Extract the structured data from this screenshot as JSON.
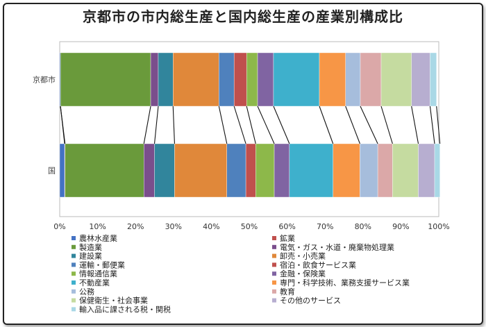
{
  "chart_data": {
    "type": "bar",
    "orientation": "horizontal",
    "stacked": "percent",
    "title": "京都市の市内総生産と国内総生産の産業別構成比",
    "categories": [
      "京都市",
      "国"
    ],
    "x_ticks": [
      "0%",
      "10%",
      "20%",
      "30%",
      "40%",
      "50%",
      "60%",
      "70%",
      "80%",
      "90%",
      "100%"
    ],
    "xlim": [
      0,
      100
    ],
    "legend_position": "bottom",
    "series": [
      {
        "name": "農林水産業",
        "color": "#4472c4",
        "values": [
          0.2,
          1.3
        ]
      },
      {
        "name": "鉱業",
        "color": "#c0504d",
        "values": [
          0.0,
          0.1
        ]
      },
      {
        "name": "製造業",
        "color": "#6a9a3b",
        "values": [
          23.8,
          20.8
        ]
      },
      {
        "name": "電気・ガス・水道・廃棄物処理業",
        "color": "#7a4e8c",
        "values": [
          2.0,
          2.8
        ]
      },
      {
        "name": "建設業",
        "color": "#31859c",
        "values": [
          3.9,
          5.3
        ]
      },
      {
        "name": "卸売・小売業",
        "color": "#e0883a",
        "values": [
          12.1,
          13.8
        ]
      },
      {
        "name": "運輸・郵便業",
        "color": "#4f81bd",
        "values": [
          4.0,
          5.0
        ]
      },
      {
        "name": "宿泊・飲食サービス業",
        "color": "#c0504d",
        "values": [
          3.3,
          2.6
        ]
      },
      {
        "name": "情報通信業",
        "color": "#8db84a",
        "values": [
          2.9,
          4.9
        ]
      },
      {
        "name": "金融・保険業",
        "color": "#8064a2",
        "values": [
          4.2,
          4.0
        ]
      },
      {
        "name": "不動産業",
        "color": "#3eb0cc",
        "values": [
          12.1,
          11.5
        ]
      },
      {
        "name": "専門・科学技術、業務支援サービス業",
        "color": "#f79646",
        "values": [
          6.9,
          7.1
        ]
      },
      {
        "name": "公務",
        "color": "#a6bddc",
        "values": [
          3.9,
          4.7
        ]
      },
      {
        "name": "教育",
        "color": "#dba8a8",
        "values": [
          5.5,
          3.9
        ]
      },
      {
        "name": "保健衛生・社会事業",
        "color": "#c5dba0",
        "values": [
          8.0,
          6.8
        ]
      },
      {
        "name": "その他のサービス",
        "color": "#b7aed0",
        "values": [
          4.9,
          4.3
        ]
      },
      {
        "name": "輸入品に課される税・関税",
        "color": "#a9d8e6",
        "values": [
          1.7,
          1.4
        ]
      }
    ]
  }
}
